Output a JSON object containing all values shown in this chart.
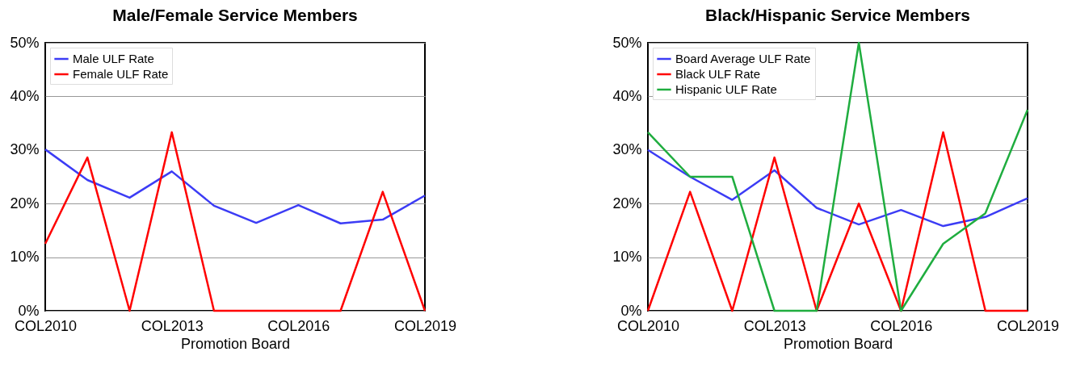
{
  "chart_data": [
    {
      "type": "line",
      "title": "Male/Female Service Members",
      "xlabel": "Promotion Board",
      "categories": [
        "COL2010",
        null,
        null,
        "COL2013",
        null,
        null,
        "COL2016",
        null,
        null,
        "COL2019"
      ],
      "series": [
        {
          "name": "Male ULF Rate",
          "color": "#3c3cf5",
          "values": [
            30.1,
            24.4,
            21.1,
            26,
            19.6,
            16.4,
            19.7,
            16.3,
            17,
            21.5
          ]
        },
        {
          "name": "Female ULF Rate",
          "color": "#ff0000",
          "values": [
            12.5,
            28.6,
            0,
            33.3,
            0,
            0,
            0,
            0,
            22.2,
            0
          ]
        }
      ],
      "ylim": [
        0,
        50
      ],
      "yticks": [
        {
          "value": 0,
          "label": "0%"
        },
        {
          "value": 10,
          "label": "10%"
        },
        {
          "value": 20,
          "label": "20%"
        },
        {
          "value": 30,
          "label": "30%"
        },
        {
          "value": 40,
          "label": "40%"
        },
        {
          "value": 50,
          "label": "50%"
        }
      ],
      "grid": "y",
      "legend": "top left",
      "marker": "none",
      "line_style": "solid"
    },
    {
      "type": "line",
      "title": "Black/Hispanic Service Members",
      "xlabel": "Promotion Board",
      "categories": [
        "COL2010",
        null,
        null,
        "COL2013",
        null,
        null,
        "COL2016",
        null,
        null,
        "COL2019"
      ],
      "series": [
        {
          "name": "Board Average ULF Rate",
          "color": "#3c3cf5",
          "values": [
            30,
            25,
            20.7,
            26.2,
            19.2,
            16.1,
            18.8,
            15.8,
            17.5,
            21
          ]
        },
        {
          "name": "Black ULF Rate",
          "color": "#ff0000",
          "values": [
            0,
            22.2,
            0,
            28.6,
            0,
            20,
            0,
            33.3,
            0,
            0
          ]
        },
        {
          "name": "Hispanic ULF Rate",
          "color": "#1fad3f",
          "values": [
            33.3,
            25,
            25,
            0,
            0,
            50,
            0,
            12.5,
            18.2,
            37.5
          ]
        }
      ],
      "ylim": [
        0,
        50
      ],
      "yticks": [
        {
          "value": 0,
          "label": "0%"
        },
        {
          "value": 10,
          "label": "10%"
        },
        {
          "value": 20,
          "label": "20%"
        },
        {
          "value": 30,
          "label": "30%"
        },
        {
          "value": 40,
          "label": "40%"
        },
        {
          "value": 50,
          "label": "50%"
        }
      ],
      "grid": "y",
      "legend": "top left",
      "marker": "none",
      "line_style": "solid"
    }
  ]
}
